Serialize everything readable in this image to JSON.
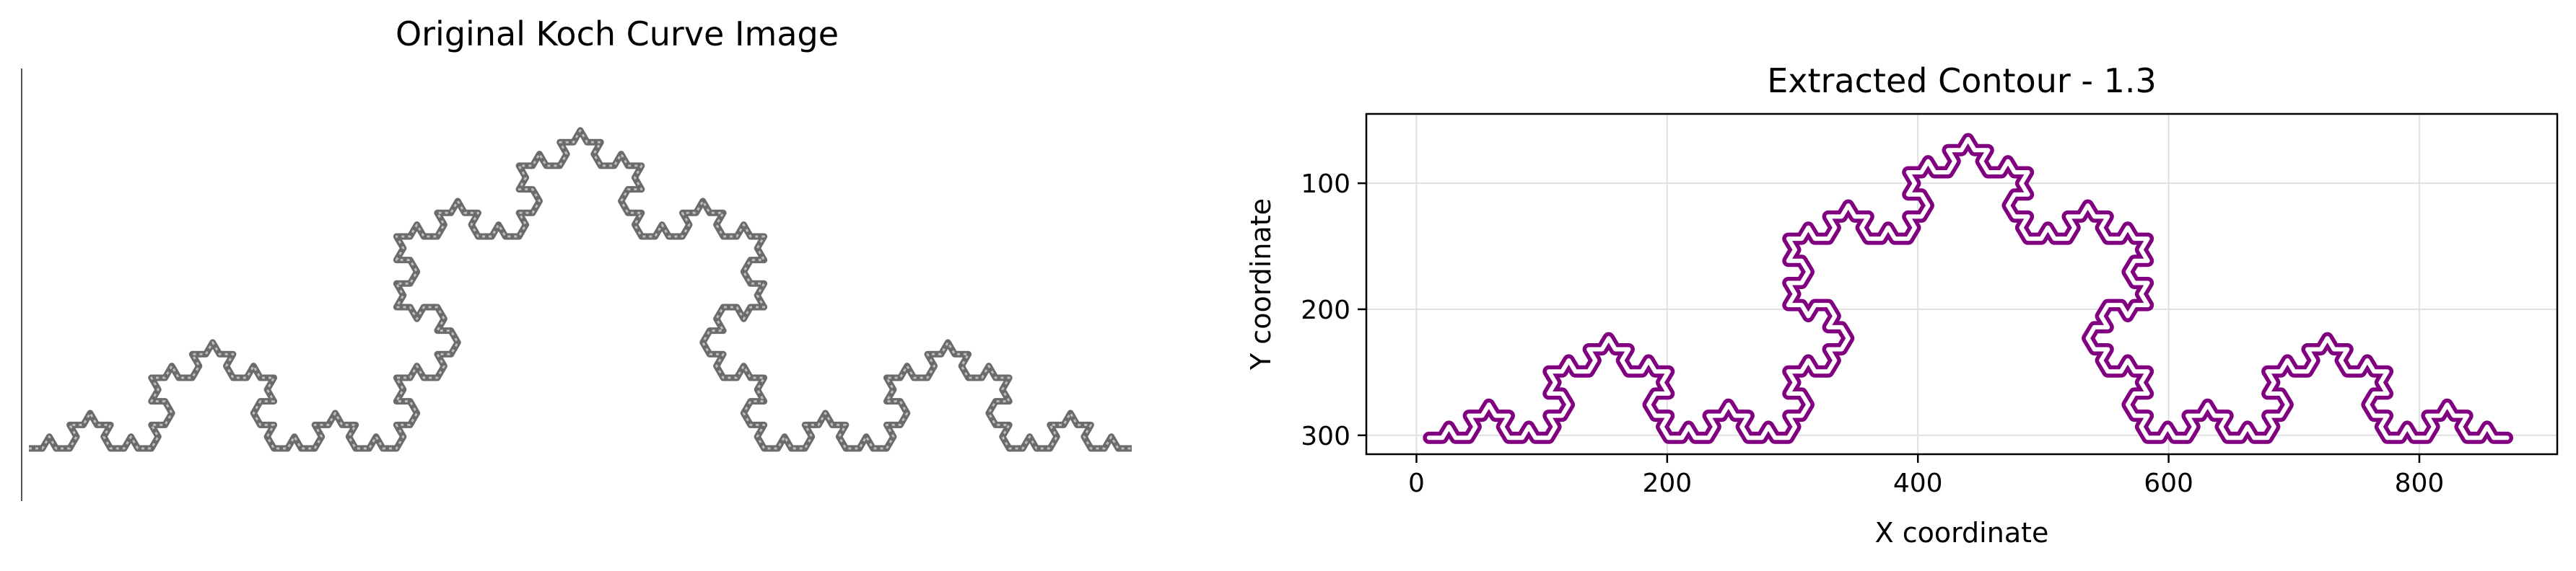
{
  "left_panel": {
    "title": "Original Koch Curve Image"
  },
  "chart_data": {
    "type": "line",
    "title": "Extracted Contour - 1.3",
    "xlabel": "X coordinate",
    "ylabel": "Y coordinate",
    "xlim": [
      -40,
      910
    ],
    "ylim": [
      315,
      45
    ],
    "y_inverted": true,
    "xticks": [
      0,
      200,
      400,
      600,
      800
    ],
    "yticks": [
      100,
      200,
      300
    ],
    "grid": true,
    "fractal": "koch-curve",
    "iterations": 4,
    "endpoints": [
      [
        10,
        302
      ],
      [
        870,
        302
      ]
    ],
    "apex": [
      440,
      65
    ],
    "series": [
      {
        "color": "#800080"
      },
      {
        "color": "#ffffff"
      }
    ]
  },
  "colors": {
    "curve_original": "#6b6b6b",
    "grid": "#e0e0e0"
  }
}
